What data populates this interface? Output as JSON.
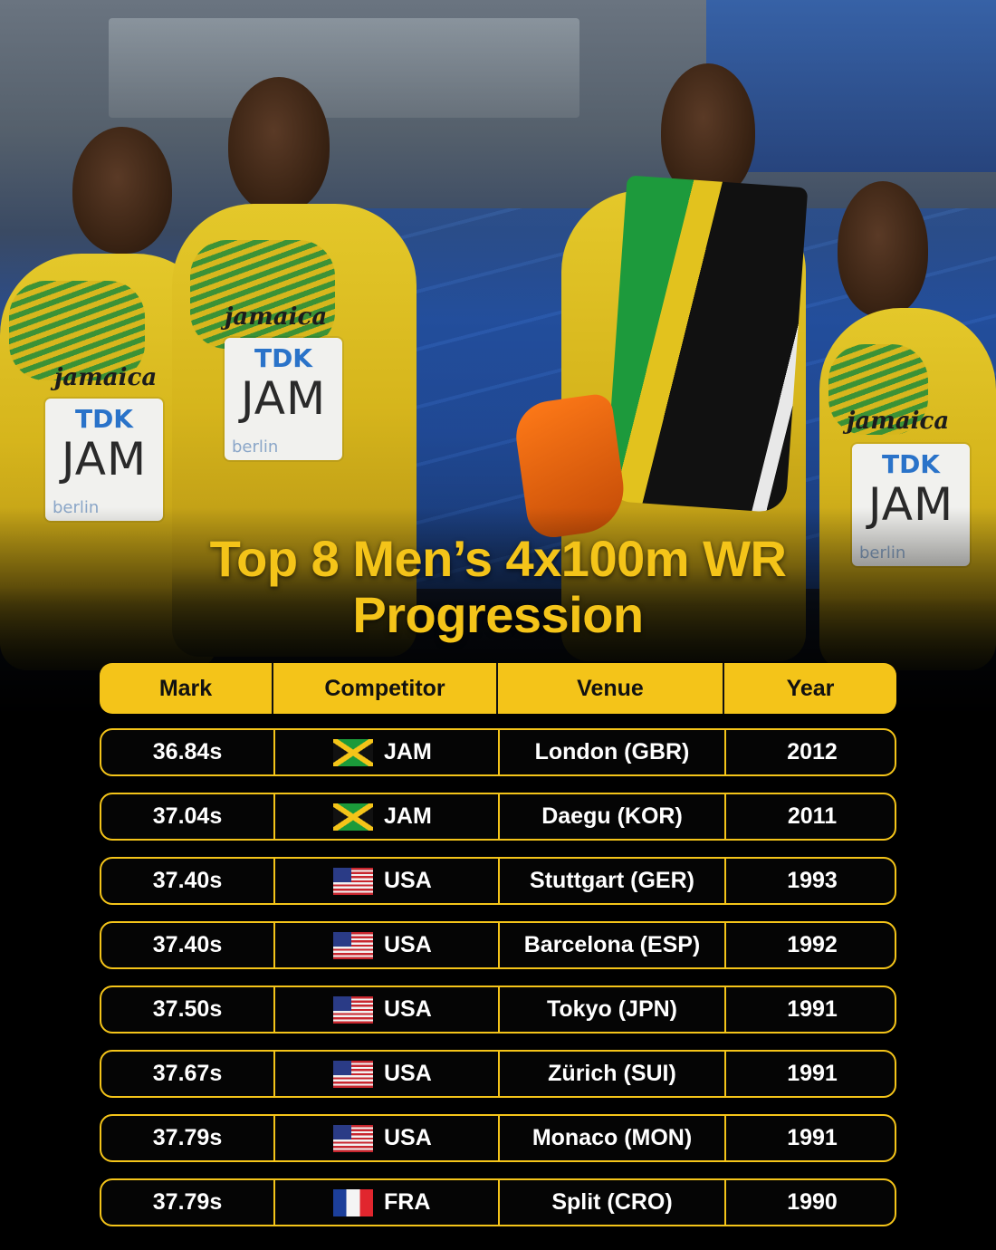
{
  "title_line1": "Top 8 Men’s 4x100m WR",
  "title_line2": "Progression",
  "photo": {
    "bibs": [
      {
        "wordmark": "jamaica",
        "sponsor": "TDK",
        "code": "JAM",
        "city": "berlin"
      },
      {
        "wordmark": "jamaica",
        "sponsor": "TDK",
        "code": "JAM",
        "city": "berlin"
      },
      {
        "wordmark": "jamaica",
        "sponsor": "TDK",
        "code": "JAM",
        "city": "berlin"
      }
    ]
  },
  "table": {
    "headers": [
      "Mark",
      "Competitor",
      "Venue",
      "Year"
    ],
    "rows": [
      {
        "mark": "36.84s",
        "flag": "jamaica-flag-icon",
        "competitor": "JAM",
        "venue": "London (GBR)",
        "year": "2012"
      },
      {
        "mark": "37.04s",
        "flag": "jamaica-flag-icon",
        "competitor": "JAM",
        "venue": "Daegu (KOR)",
        "year": "2011"
      },
      {
        "mark": "37.40s",
        "flag": "usa-flag-icon",
        "competitor": "USA",
        "venue": "Stuttgart (GER)",
        "year": "1993"
      },
      {
        "mark": "37.40s",
        "flag": "usa-flag-icon",
        "competitor": "USA",
        "venue": "Barcelona (ESP)",
        "year": "1992"
      },
      {
        "mark": "37.50s",
        "flag": "usa-flag-icon",
        "competitor": "USA",
        "venue": "Tokyo (JPN)",
        "year": "1991"
      },
      {
        "mark": "37.67s",
        "flag": "usa-flag-icon",
        "competitor": "USA",
        "venue": "Zürich (SUI)",
        "year": "1991"
      },
      {
        "mark": "37.79s",
        "flag": "usa-flag-icon",
        "competitor": "USA",
        "venue": "Monaco (MON)",
        "year": "1991"
      },
      {
        "mark": "37.79s",
        "flag": "france-flag-icon",
        "competitor": "FRA",
        "venue": "Split (CRO)",
        "year": "1990"
      }
    ]
  },
  "colors": {
    "accent": "#f4c419",
    "background": "#000000",
    "text": "#ffffff"
  }
}
